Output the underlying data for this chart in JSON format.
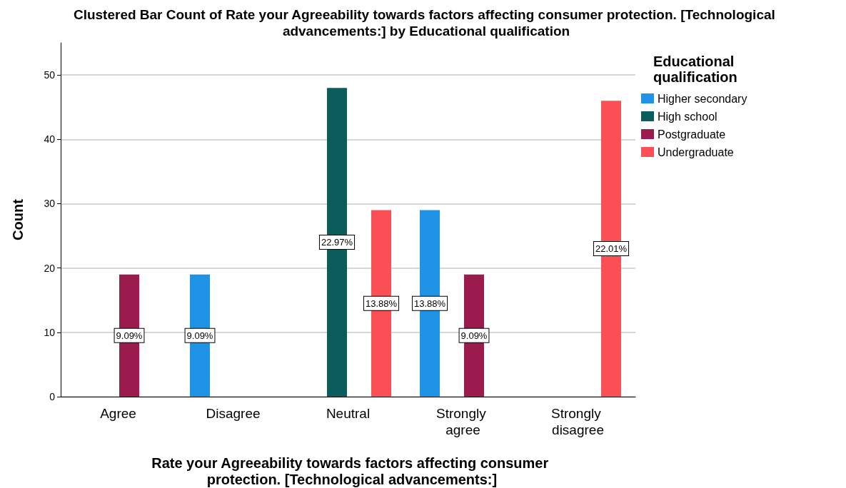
{
  "chart_data": {
    "type": "bar",
    "title": "Clustered Bar Count of Rate your Agreeability towards factors affecting consumer protection. [Technological advancements:] by Educational qualification",
    "xlabel": "Rate your Agreeability towards factors affecting consumer protection. [Technological advancements:]",
    "ylabel": "Count",
    "legend_title": "Educational qualification",
    "categories": [
      "Agree",
      "Disagree",
      "Neutral",
      "Strongly agree",
      "Strongly disagree"
    ],
    "series": [
      {
        "name": "Higher secondary",
        "color": "#1f93e6",
        "values": [
          null,
          19,
          null,
          29,
          null
        ]
      },
      {
        "name": "High school",
        "color": "#0b5c5a",
        "values": [
          null,
          null,
          48,
          null,
          null
        ]
      },
      {
        "name": "Postgraduate",
        "color": "#9c1b4f",
        "values": [
          19,
          null,
          null,
          19,
          null
        ]
      },
      {
        "name": "Undergraduate",
        "color": "#fb4f56",
        "values": [
          null,
          null,
          29,
          null,
          46
        ]
      }
    ],
    "annotations": [
      {
        "text": "9.09%",
        "x": "Agree",
        "y": 9.5
      },
      "9.09%",
      {
        "text": "22.97%",
        "x": "Neutral",
        "y": 24
      },
      {
        "text": "13.88%",
        "x": "Neutral",
        "y": 14.5
      },
      {
        "text": "13.88%",
        "x": "Strongly agree",
        "y": 14.5
      },
      {
        "text": "9.09%",
        "x": "Strongly agree",
        "y": 9.5
      },
      "22.01%"
    ],
    "ylim": [
      0,
      55
    ],
    "yticks": [
      0,
      10,
      20,
      30,
      40,
      50
    ],
    "grid": "y",
    "legend": "top right"
  }
}
